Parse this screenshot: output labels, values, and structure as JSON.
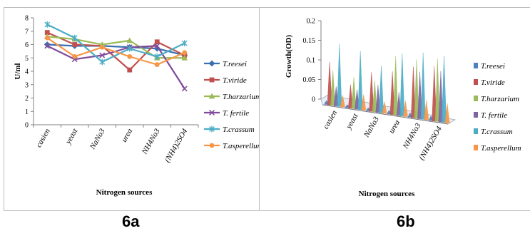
{
  "figure_labels": {
    "a": "6a",
    "b": "6b"
  },
  "chart_data": [
    {
      "type": "line",
      "panel": "6a",
      "title": "",
      "xlabel": "Nitrogen sources",
      "ylabel": "U/ml",
      "ylim": [
        0,
        8
      ],
      "yticks": [
        0,
        1,
        2,
        3,
        4,
        5,
        6,
        7,
        8
      ],
      "grid": false,
      "legend_position": "right",
      "categories": [
        "casien",
        "yeast",
        "NaNo3",
        "urea",
        "NH4No3",
        "(NH4)2SO4"
      ],
      "series": [
        {
          "name": "T.reesei",
          "color": "#3a6fb0",
          "marker": "diamond",
          "values": [
            6.0,
            5.9,
            5.9,
            5.8,
            5.7,
            5.2
          ]
        },
        {
          "name": "T.viride",
          "color": "#c0504d",
          "marker": "square",
          "values": [
            6.9,
            6.0,
            5.9,
            4.1,
            6.2,
            5.2
          ]
        },
        {
          "name": "T.harzarium",
          "color": "#9bbb59",
          "marker": "triangle",
          "values": [
            6.6,
            6.4,
            6.0,
            6.3,
            5.0,
            5.0
          ]
        },
        {
          "name": "T. fertile",
          "color": "#7f4a9c",
          "marker": "x",
          "values": [
            5.9,
            4.9,
            5.2,
            5.8,
            5.9,
            2.7
          ]
        },
        {
          "name": "T.crassum",
          "color": "#4bacc6",
          "marker": "star",
          "values": [
            7.5,
            6.5,
            4.7,
            5.7,
            5.1,
            6.1
          ]
        },
        {
          "name": "T.asperellum",
          "color": "#f79646",
          "marker": "circle",
          "values": [
            6.5,
            5.1,
            5.8,
            5.1,
            4.5,
            5.4
          ]
        }
      ]
    },
    {
      "type": "bar",
      "panel": "6b",
      "title": "",
      "xlabel": "Nitrogen sources",
      "ylabel": "Growth(OD)",
      "ylim": [
        0,
        0.2
      ],
      "yticks": [
        0,
        0.05,
        0.1,
        0.15,
        0.2
      ],
      "ytick_labels": [
        "0",
        "0.05",
        "0.1",
        "0.15",
        "0.2"
      ],
      "grid": false,
      "legend_position": "right",
      "style": "3d-cone",
      "categories": [
        "casien",
        "yeast",
        "NaNo3",
        "urea",
        "NH4No3",
        "(NH4)2SO4"
      ],
      "series": [
        {
          "name": "T.reesei",
          "color": "#4f81bd",
          "values": [
            0.01,
            0.008,
            0.008,
            0.01,
            0.012,
            0.012
          ]
        },
        {
          "name": "T.viride",
          "color": "#c0504d",
          "values": [
            0.11,
            0.06,
            0.1,
            0.11,
            0.13,
            0.14
          ]
        },
        {
          "name": "T.harzarium",
          "color": "#9bbb59",
          "values": [
            0.09,
            0.08,
            0.08,
            0.15,
            0.15,
            0.16
          ]
        },
        {
          "name": "T. fertile",
          "color": "#8064a2",
          "values": [
            0.05,
            0.05,
            0.07,
            0.06,
            0.12,
            0.13
          ]
        },
        {
          "name": "T.crassum",
          "color": "#4bacc6",
          "values": [
            0.16,
            0.15,
            0.12,
            0.16,
            0.17,
            0.17
          ]
        },
        {
          "name": "T.asperellum",
          "color": "#f79646",
          "values": [
            0.03,
            0.04,
            0.03,
            0.04,
            0.05,
            0.05
          ]
        }
      ]
    }
  ]
}
